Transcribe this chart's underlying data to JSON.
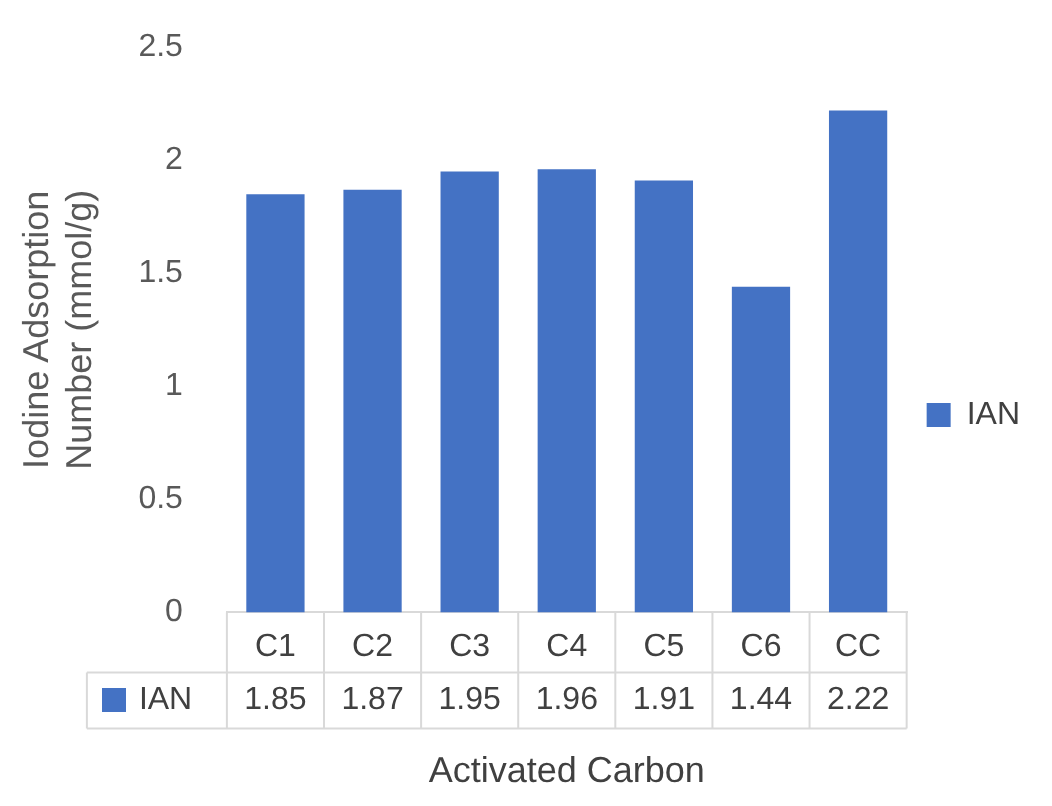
{
  "chart_data": {
    "type": "bar",
    "xlabel": "Activated Carbon",
    "ylabel": "Iodine Adsorption Number (mmol/g)",
    "categories": [
      "C1",
      "C2",
      "C3",
      "C4",
      "C5",
      "C6",
      "CC"
    ],
    "series": [
      {
        "name": "IAN",
        "color": "#4472c4",
        "values": [
          1.85,
          1.87,
          1.95,
          1.96,
          1.91,
          1.44,
          2.22
        ]
      }
    ],
    "ylim": [
      0,
      2.5
    ],
    "yticks": [
      0,
      0.5,
      1,
      1.5,
      2,
      2.5
    ],
    "grid": false,
    "legend": "right",
    "data_labels": true
  }
}
